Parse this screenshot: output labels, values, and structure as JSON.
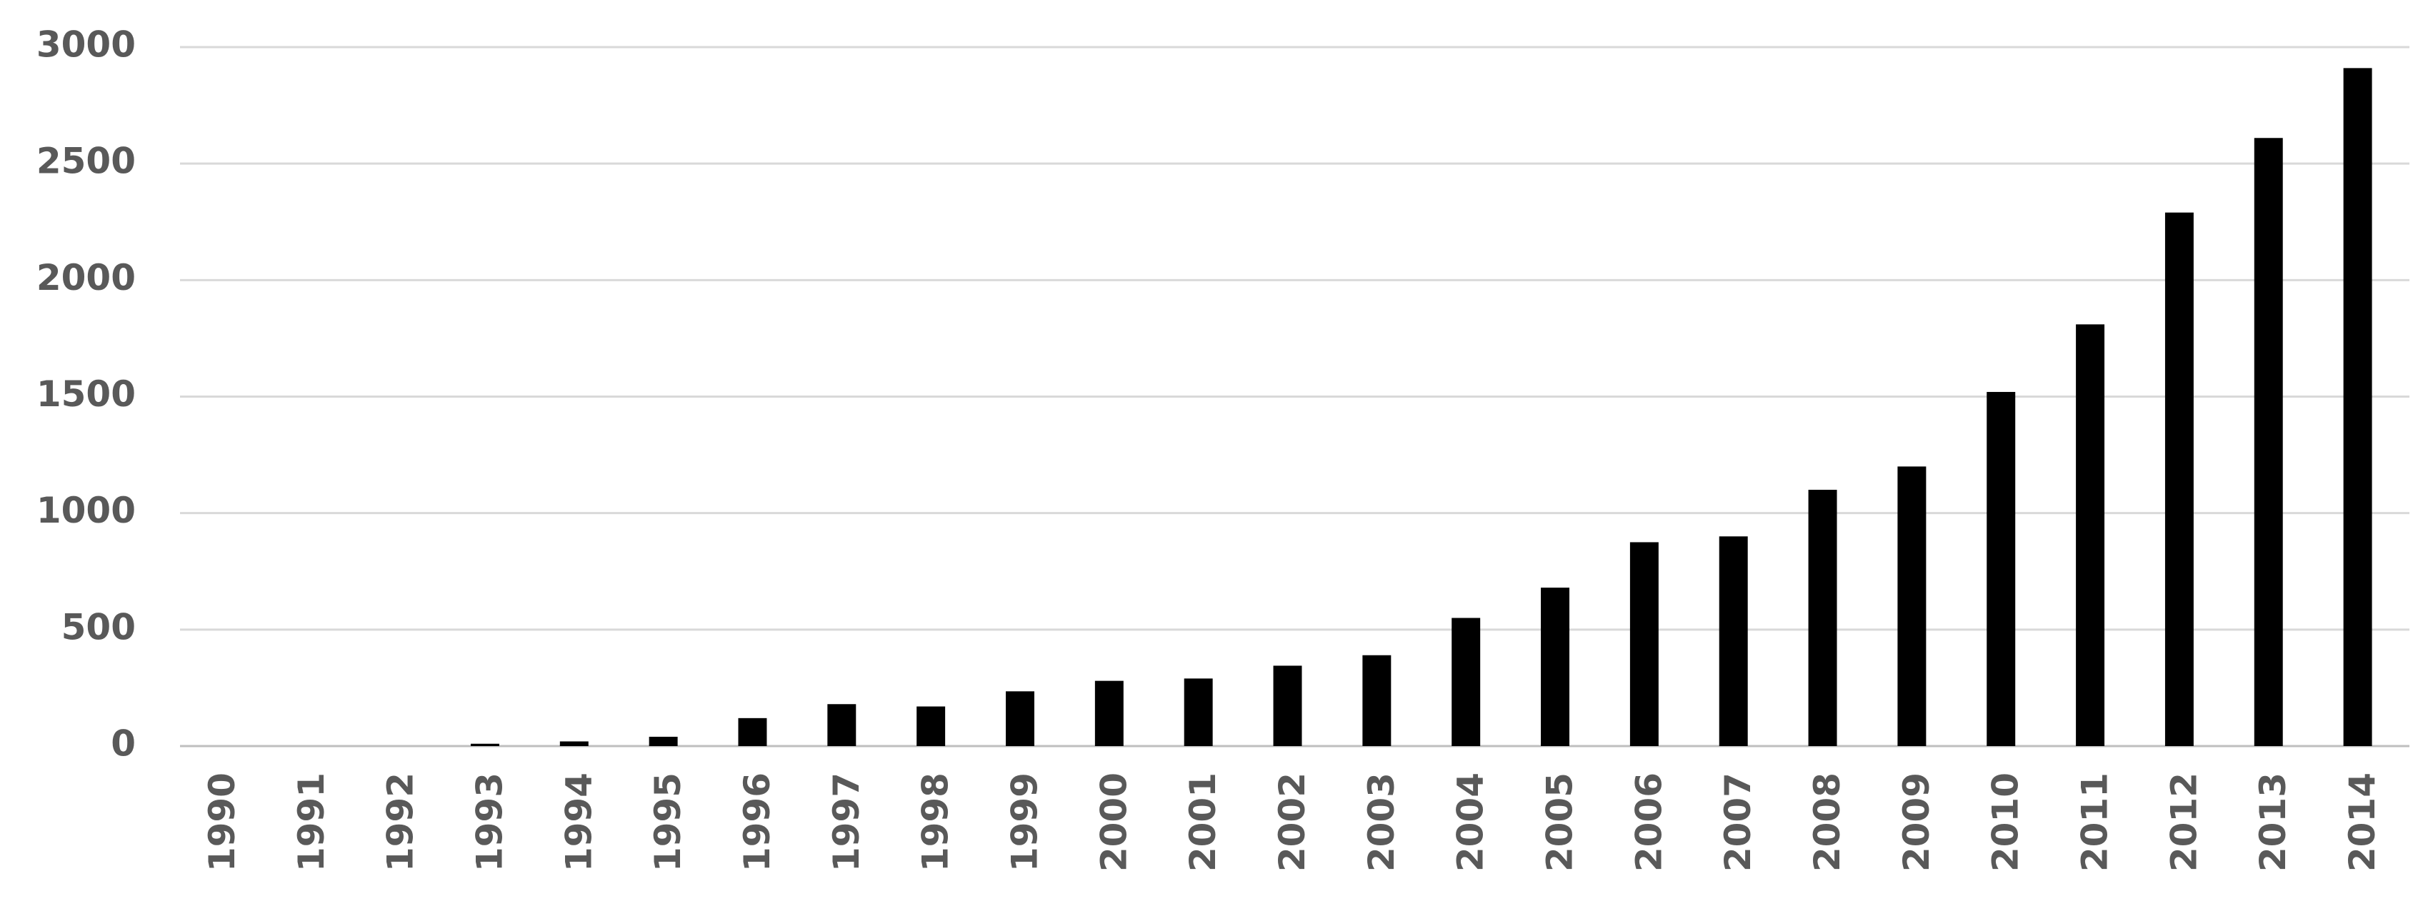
{
  "chart_data": {
    "type": "bar",
    "categories": [
      "1990",
      "1991",
      "1992",
      "1993",
      "1994",
      "1995",
      "1996",
      "1997",
      "1998",
      "1999",
      "2000",
      "2001",
      "2002",
      "2003",
      "2004",
      "2005",
      "2006",
      "2007",
      "2008",
      "2009",
      "2010",
      "2011",
      "2012",
      "2013",
      "2014"
    ],
    "values": [
      0,
      0,
      0,
      10,
      20,
      40,
      120,
      180,
      170,
      235,
      280,
      290,
      345,
      390,
      550,
      680,
      875,
      900,
      1100,
      1200,
      1520,
      1810,
      2290,
      2610,
      2910
    ],
    "color": "#000000",
    "ylim": [
      0,
      3000
    ],
    "yticks": [
      0,
      500,
      1000,
      1500,
      2000,
      2500,
      3000
    ],
    "grid": true
  }
}
